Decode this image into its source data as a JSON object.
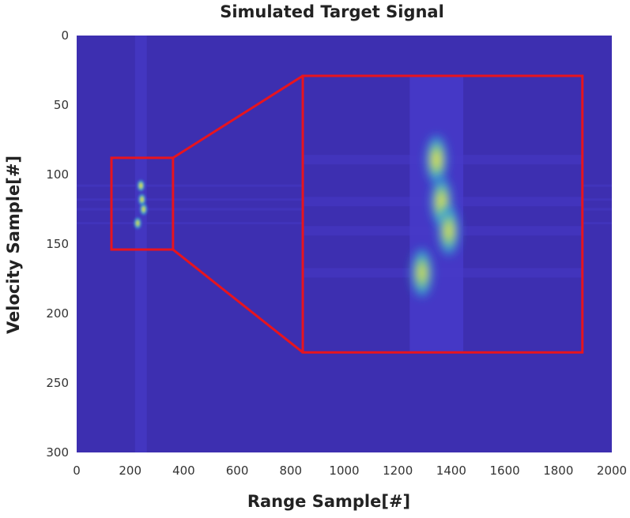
{
  "chart_data": {
    "type": "heatmap",
    "title": "Simulated Target Signal",
    "xlabel": "Range Sample[#]",
    "ylabel": "Velocity Sample[#]",
    "xlim": [
      0,
      2000
    ],
    "ylim": [
      0,
      300
    ],
    "y_direction": "top-to-bottom",
    "x_ticks": [
      0,
      200,
      400,
      600,
      800,
      1000,
      1200,
      1400,
      1600,
      1800,
      2000
    ],
    "y_ticks": [
      0,
      50,
      100,
      150,
      200,
      250,
      300
    ],
    "colormap": "parula",
    "background_color": "#3d2fb0",
    "highlight_color": "#e8141e",
    "hotspots": [
      {
        "x": 240,
        "y": 108,
        "intensity": 0.95
      },
      {
        "x": 244,
        "y": 118,
        "intensity": 0.9
      },
      {
        "x": 250,
        "y": 125,
        "intensity": 0.85
      },
      {
        "x": 228,
        "y": 135,
        "intensity": 0.8
      }
    ],
    "zoom_region": {
      "x": [
        130,
        360
      ],
      "y": [
        88,
        154
      ]
    },
    "inset_region": {
      "x": [
        845,
        1890
      ],
      "y": [
        29,
        228
      ]
    }
  }
}
